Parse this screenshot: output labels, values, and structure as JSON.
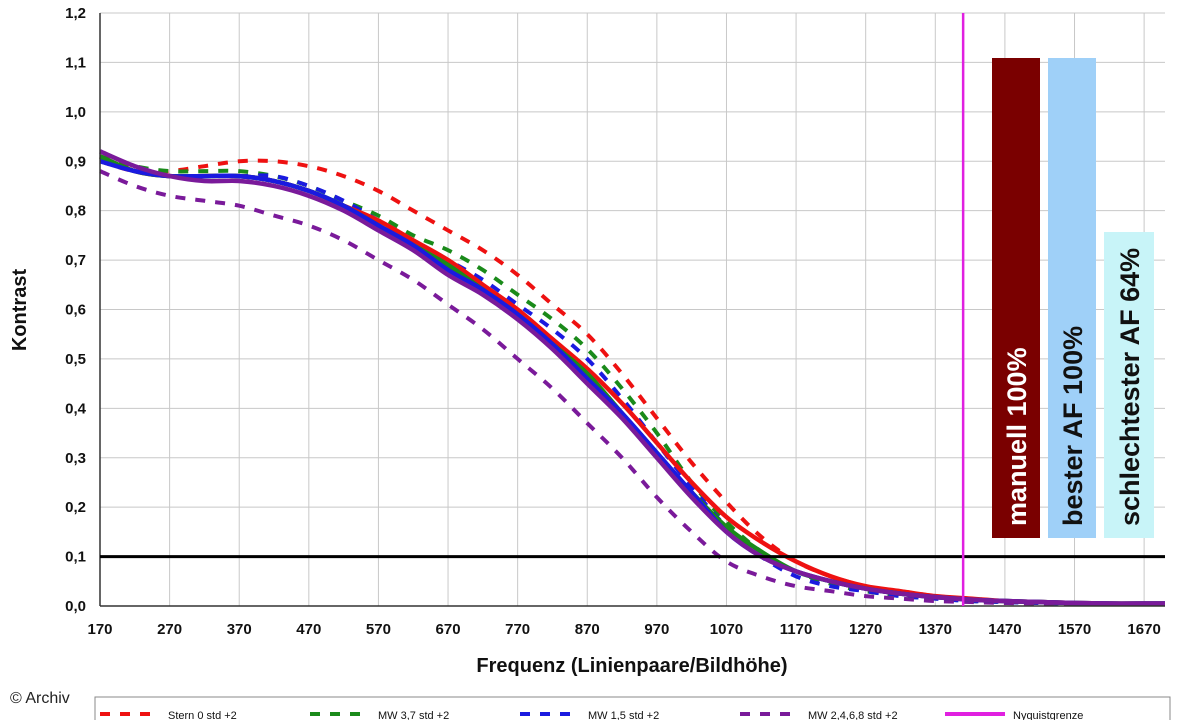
{
  "chart_data": {
    "type": "line",
    "title": "",
    "xlabel": "Frequenz (Linienpaare/Bildhöhe)",
    "ylabel": "Kontrast",
    "xlim": [
      170,
      1700
    ],
    "ylim": [
      0,
      1.2
    ],
    "x_ticks": [
      "170",
      "270",
      "370",
      "470",
      "570",
      "670",
      "770",
      "870",
      "970",
      "1070",
      "1170",
      "1270",
      "1370",
      "1470",
      "1570",
      "1670"
    ],
    "y_ticks": [
      "0,0",
      "0,1",
      "0,2",
      "0,3",
      "0,4",
      "0,5",
      "0,6",
      "0,7",
      "0,8",
      "0,9",
      "1,0",
      "1,1",
      "1,2"
    ],
    "grid": true,
    "reference_line": {
      "y": 0.1,
      "color": "#000000"
    },
    "nyquist": {
      "x": 1410,
      "label": "Nyquistgrenze",
      "color": "#e020e0"
    },
    "bars": [
      {
        "label": "manuell 100%",
        "value": 100,
        "color": "#7a0000",
        "text_color": "#ffffff"
      },
      {
        "label": "bester AF 100%",
        "value": 100,
        "color": "#9fd0f8",
        "text_color": "#111111"
      },
      {
        "label": "schlechtester AF 64%",
        "value": 64,
        "color": "#c8f4f8",
        "text_color": "#111111"
      }
    ],
    "x": [
      170,
      220,
      270,
      320,
      370,
      420,
      470,
      520,
      570,
      620,
      670,
      720,
      770,
      820,
      870,
      920,
      970,
      1020,
      1070,
      1120,
      1170,
      1220,
      1270,
      1320,
      1370,
      1420,
      1470,
      1520,
      1570,
      1620,
      1670,
      1700
    ],
    "series": [
      {
        "name": "Stern 0 std +2",
        "color": "#ee1111",
        "dashed": true,
        "values": [
          0.9,
          0.88,
          0.88,
          0.89,
          0.9,
          0.9,
          0.89,
          0.87,
          0.84,
          0.8,
          0.76,
          0.72,
          0.67,
          0.61,
          0.55,
          0.47,
          0.38,
          0.29,
          0.21,
          0.14,
          0.09,
          0.06,
          0.04,
          0.03,
          0.02,
          0.015,
          0.01,
          0.008,
          0.006,
          0.005,
          0.005,
          0.005
        ]
      },
      {
        "name": "MW 3,7 std +2",
        "color": "#1a8a1a",
        "dashed": true,
        "values": [
          0.91,
          0.89,
          0.88,
          0.88,
          0.88,
          0.87,
          0.85,
          0.82,
          0.79,
          0.75,
          0.72,
          0.68,
          0.63,
          0.58,
          0.52,
          0.44,
          0.35,
          0.25,
          0.17,
          0.11,
          0.07,
          0.045,
          0.03,
          0.02,
          0.015,
          0.01,
          0.008,
          0.006,
          0.005,
          0.005,
          0.005,
          0.005
        ]
      },
      {
        "name": "MW 1,5 std +2",
        "color": "#1a1ae0",
        "dashed": true,
        "values": [
          0.9,
          0.88,
          0.87,
          0.87,
          0.87,
          0.87,
          0.85,
          0.82,
          0.78,
          0.74,
          0.7,
          0.66,
          0.61,
          0.56,
          0.5,
          0.42,
          0.33,
          0.24,
          0.16,
          0.1,
          0.06,
          0.04,
          0.03,
          0.02,
          0.015,
          0.01,
          0.008,
          0.006,
          0.005,
          0.005,
          0.005,
          0.005
        ]
      },
      {
        "name": "MW 2,4,6,8 std +2",
        "color": "#7a1a9a",
        "dashed": true,
        "values": [
          0.88,
          0.85,
          0.83,
          0.82,
          0.81,
          0.79,
          0.77,
          0.74,
          0.7,
          0.66,
          0.61,
          0.56,
          0.5,
          0.44,
          0.37,
          0.3,
          0.22,
          0.15,
          0.09,
          0.06,
          0.04,
          0.03,
          0.02,
          0.015,
          0.01,
          0.008,
          0.006,
          0.005,
          0.005,
          0.005,
          0.005,
          0.005
        ]
      },
      {
        "name": "Stern 0 std +2 (solid)",
        "color": "#ee1111",
        "dashed": false,
        "values": [
          0.91,
          0.88,
          0.87,
          0.87,
          0.87,
          0.86,
          0.84,
          0.81,
          0.78,
          0.74,
          0.7,
          0.65,
          0.6,
          0.54,
          0.48,
          0.41,
          0.33,
          0.25,
          0.18,
          0.13,
          0.09,
          0.06,
          0.04,
          0.03,
          0.02,
          0.015,
          0.01,
          0.008,
          0.006,
          0.005,
          0.005,
          0.005
        ]
      },
      {
        "name": "MW 3,7 std +2 (solid)",
        "color": "#1a8a1a",
        "dashed": false,
        "values": [
          0.91,
          0.88,
          0.87,
          0.87,
          0.87,
          0.86,
          0.84,
          0.81,
          0.77,
          0.73,
          0.69,
          0.64,
          0.59,
          0.53,
          0.47,
          0.39,
          0.31,
          0.23,
          0.16,
          0.11,
          0.07,
          0.05,
          0.035,
          0.025,
          0.018,
          0.013,
          0.01,
          0.008,
          0.006,
          0.005,
          0.005,
          0.005
        ]
      },
      {
        "name": "MW 1,5 std +2 (solid)",
        "color": "#1a1ae0",
        "dashed": false,
        "values": [
          0.9,
          0.88,
          0.87,
          0.87,
          0.87,
          0.86,
          0.84,
          0.81,
          0.77,
          0.73,
          0.68,
          0.64,
          0.59,
          0.53,
          0.46,
          0.39,
          0.31,
          0.23,
          0.15,
          0.1,
          0.07,
          0.05,
          0.035,
          0.025,
          0.018,
          0.013,
          0.01,
          0.008,
          0.006,
          0.005,
          0.005,
          0.005
        ]
      },
      {
        "name": "MW 2,4,6,8 std +2 (solid)",
        "color": "#7a1a9a",
        "dashed": false,
        "values": [
          0.92,
          0.89,
          0.87,
          0.86,
          0.86,
          0.85,
          0.83,
          0.8,
          0.76,
          0.72,
          0.67,
          0.63,
          0.58,
          0.52,
          0.45,
          0.38,
          0.3,
          0.22,
          0.15,
          0.1,
          0.07,
          0.05,
          0.035,
          0.025,
          0.018,
          0.013,
          0.01,
          0.008,
          0.006,
          0.005,
          0.005,
          0.005
        ]
      }
    ],
    "legend": [
      {
        "label": "Stern 0 std +2",
        "color": "#ee1111",
        "dashed": true
      },
      {
        "label": "MW 3,7 std +2",
        "color": "#1a8a1a",
        "dashed": true
      },
      {
        "label": "MW 1,5 std +2",
        "color": "#1a1ae0",
        "dashed": true
      },
      {
        "label": "MW 2,4,6,8 std +2",
        "color": "#7a1a9a",
        "dashed": true
      },
      {
        "label": "Nyquistgrenze",
        "color": "#e020e0",
        "dashed": false
      }
    ],
    "legend_position": "bottom"
  },
  "credit": "© Archiv"
}
